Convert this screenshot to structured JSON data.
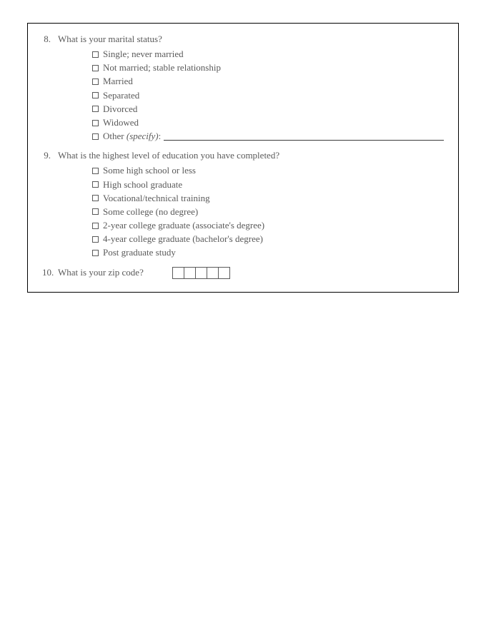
{
  "q8": {
    "num": "8.",
    "text": "What is your marital status?",
    "options": [
      "Single; never married",
      "Not married; stable relationship",
      "Married",
      "Separated",
      "Divorced",
      "Widowed"
    ],
    "other_prefix": "Other ",
    "other_italic": "(specify)",
    "other_colon": ":"
  },
  "q9": {
    "num": "9.",
    "text": "What is the highest level of education you have completed?",
    "options": [
      "Some high school or less",
      "High school graduate",
      "Vocational/technical training",
      "Some college (no degree)",
      "2-year college graduate (associate's degree)",
      "4-year college graduate (bachelor's degree)",
      "Post graduate study"
    ]
  },
  "q10": {
    "num": "10.",
    "text": "What is your zip code?",
    "cells": 5
  }
}
